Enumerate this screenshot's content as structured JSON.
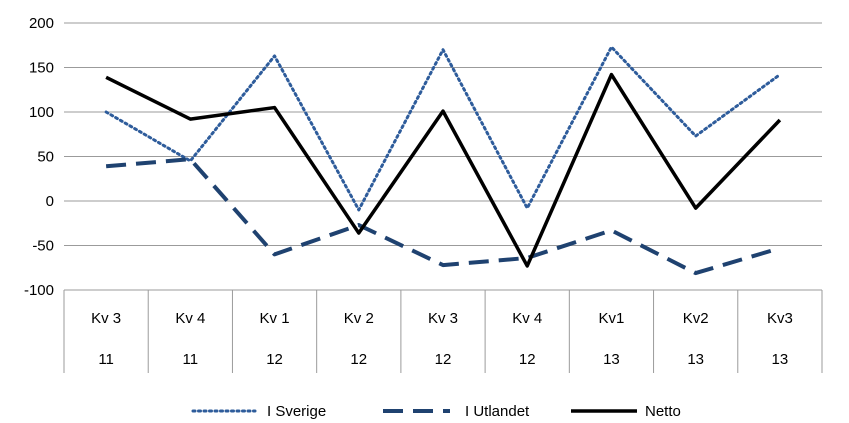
{
  "chart_data": {
    "type": "line",
    "categories": [
      {
        "quarter": "Kv 3",
        "year": "11"
      },
      {
        "quarter": "Kv 4",
        "year": "11"
      },
      {
        "quarter": "Kv 1",
        "year": "12"
      },
      {
        "quarter": "Kv 2",
        "year": "12"
      },
      {
        "quarter": "Kv 3",
        "year": "12"
      },
      {
        "quarter": "Kv 4",
        "year": "12"
      },
      {
        "quarter": "Kv1",
        "year": "13"
      },
      {
        "quarter": "Kv2",
        "year": "13"
      },
      {
        "quarter": "Kv3",
        "year": "13"
      }
    ],
    "series": [
      {
        "name": "I Sverige",
        "color": "#2E5C9B",
        "style": "dotted",
        "values": [
          100,
          45,
          163,
          -10,
          170,
          -8,
          173,
          73,
          142
        ]
      },
      {
        "name": "I Utlandet",
        "color": "#1F4270",
        "style": "dashed",
        "values": [
          39,
          47,
          -60,
          -27,
          -72,
          -64,
          -33,
          -81,
          -53
        ]
      },
      {
        "name": "Netto",
        "color": "#000000",
        "style": "solid",
        "values": [
          139,
          92,
          105,
          -36,
          101,
          -73,
          142,
          -8,
          91
        ]
      }
    ],
    "yticks": [
      200,
      150,
      100,
      50,
      0,
      -50,
      -100
    ],
    "ylim": [
      -100,
      200
    ],
    "grid": true,
    "legend_position": "bottom"
  }
}
